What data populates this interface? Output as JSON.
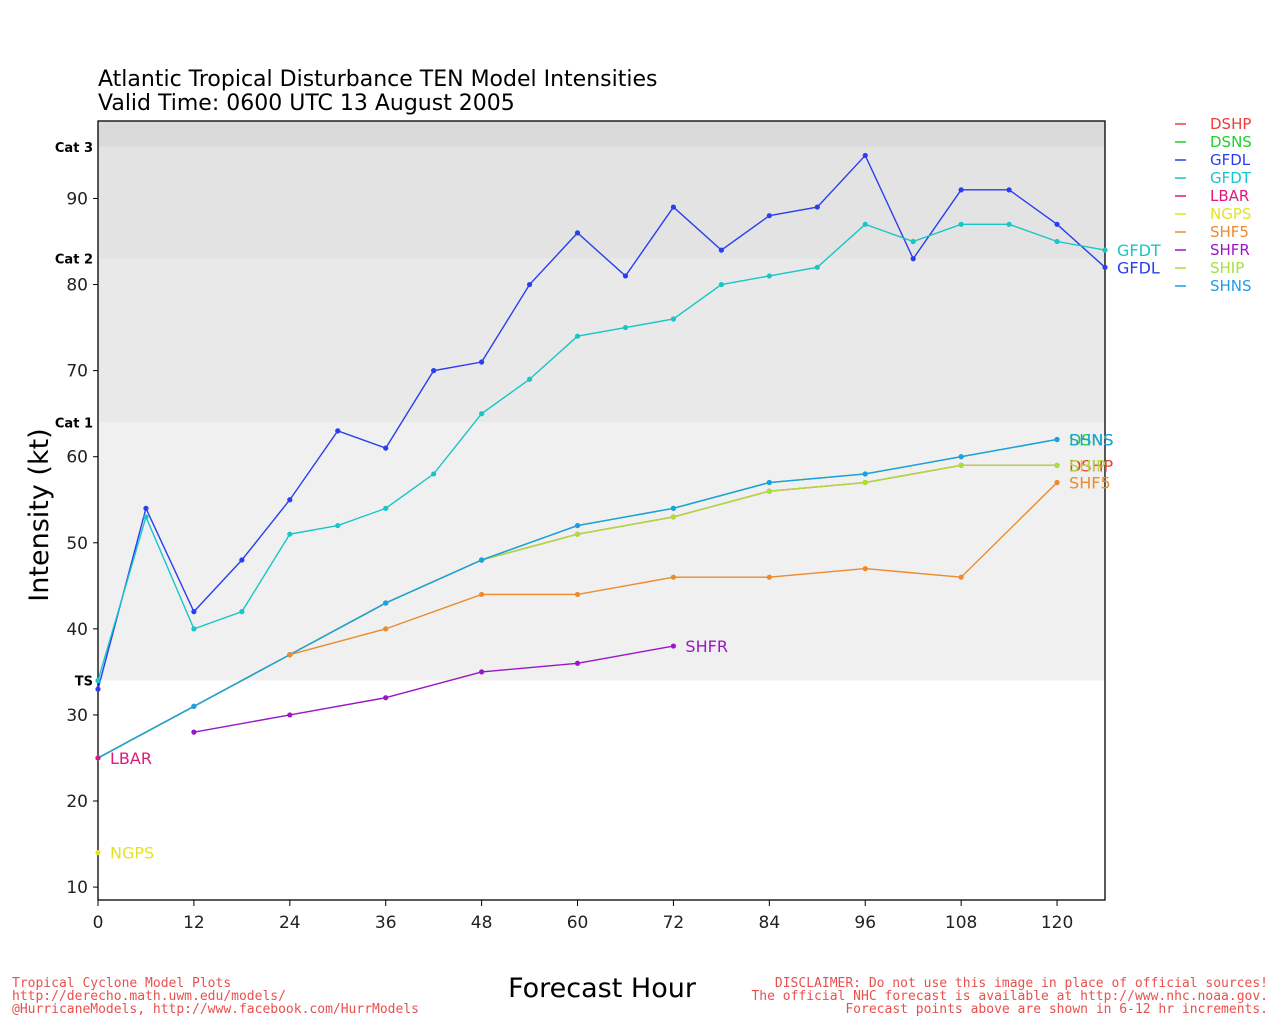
{
  "chart_data": {
    "type": "line",
    "title": "Atlantic Tropical Disturbance TEN Model Intensities",
    "subtitle": "Valid Time: 0600 UTC 13 August 2005",
    "xlabel": "Forecast Hour",
    "ylabel": "Intensity (kt)",
    "xlim": [
      0,
      126
    ],
    "ylim": [
      8.5,
      99
    ],
    "xticks": [
      0,
      12,
      24,
      36,
      48,
      60,
      72,
      84,
      96,
      108,
      120
    ],
    "xtick_labels": [
      "0",
      "12",
      "24",
      "36",
      "48",
      "60",
      "72",
      "84",
      "96",
      "108",
      "120"
    ],
    "yticks": [
      10,
      20,
      30,
      40,
      50,
      60,
      70,
      80,
      90
    ],
    "ytick_labels": [
      "10",
      "20",
      "30",
      "40",
      "50",
      "60",
      "70",
      "80",
      "90"
    ],
    "grid": false,
    "legend_position": "right-top",
    "bands": [
      {
        "label": "TS",
        "from": 34,
        "to": 64,
        "color": "#f0f0f0"
      },
      {
        "label": "Cat 1",
        "from": 64,
        "to": 83,
        "color": "#e9e9e9"
      },
      {
        "label": "Cat 2",
        "from": 83,
        "to": 96,
        "color": "#e3e3e3"
      },
      {
        "label": "Cat 3",
        "from": 96,
        "to": 99,
        "color": "#dadada"
      }
    ],
    "series": [
      {
        "name": "GFDL",
        "color": "#2a3df0",
        "x": [
          0,
          6,
          12,
          18,
          24,
          30,
          36,
          42,
          48,
          54,
          60,
          66,
          72,
          78,
          84,
          90,
          96,
          102,
          108,
          114,
          120,
          126
        ],
        "y": [
          33,
          54,
          42,
          48,
          55,
          63,
          61,
          70,
          71,
          80,
          86,
          81,
          89,
          84,
          88,
          89,
          95,
          83,
          91,
          91,
          87,
          82
        ],
        "end_label": "GFDL"
      },
      {
        "name": "GFDT",
        "color": "#17c6c6",
        "x": [
          0,
          6,
          12,
          18,
          24,
          30,
          36,
          42,
          48,
          54,
          60,
          66,
          72,
          78,
          84,
          90,
          96,
          102,
          108,
          114,
          120,
          126
        ],
        "y": [
          34,
          53,
          40,
          42,
          51,
          52,
          54,
          58,
          65,
          69,
          74,
          75,
          76,
          80,
          81,
          82,
          87,
          85,
          87,
          87,
          85,
          84
        ],
        "end_label": "GFDT"
      },
      {
        "name": "DSHP",
        "color": "#f03a3a",
        "x": [
          0,
          12,
          24,
          36,
          48,
          60,
          72,
          84,
          96,
          108,
          120
        ],
        "y": [
          25,
          31,
          37,
          43,
          48,
          51,
          53,
          56,
          57,
          59,
          59
        ],
        "end_label": "DSHP"
      },
      {
        "name": "SHIP",
        "color": "#a8e03a",
        "x": [
          0,
          12,
          24,
          36,
          48,
          60,
          72,
          84,
          96,
          108,
          120
        ],
        "y": [
          25,
          31,
          37,
          43,
          48,
          51,
          53,
          56,
          57,
          59,
          59
        ],
        "end_label": "SHIP"
      },
      {
        "name": "DSNS",
        "color": "#1fd02a",
        "x": [
          0,
          12,
          24,
          36,
          48,
          60,
          72,
          84,
          96,
          108,
          120
        ],
        "y": [
          25,
          31,
          37,
          43,
          48,
          52,
          54,
          57,
          58,
          60,
          62
        ],
        "end_label": "DSNS"
      },
      {
        "name": "SHNS",
        "color": "#1e9ee8",
        "x": [
          0,
          12,
          24,
          36,
          48,
          60,
          72,
          84,
          96,
          108,
          120
        ],
        "y": [
          25,
          31,
          37,
          43,
          48,
          52,
          54,
          57,
          58,
          60,
          62
        ],
        "end_label": "SHNS"
      },
      {
        "name": "SHF5",
        "color": "#ec8a2e",
        "x": [
          24,
          36,
          48,
          60,
          72,
          84,
          96,
          108,
          120
        ],
        "y": [
          37,
          40,
          44,
          44,
          46,
          46,
          47,
          46,
          57
        ],
        "end_label": "SHF5"
      },
      {
        "name": "SHFR",
        "color": "#9a16c8",
        "x": [
          12,
          24,
          36,
          48,
          60,
          72
        ],
        "y": [
          28,
          30,
          32,
          35,
          36,
          38
        ],
        "end_label": "SHFR"
      },
      {
        "name": "LBAR",
        "color": "#e0187c",
        "x": [
          0
        ],
        "y": [
          25
        ],
        "end_label": "LBAR"
      },
      {
        "name": "NGPS",
        "color": "#e2e22a",
        "x": [
          0
        ],
        "y": [
          14
        ],
        "end_label": "NGPS"
      }
    ],
    "legend": [
      {
        "name": "DSHP",
        "color": "#f03a3a"
      },
      {
        "name": "DSNS",
        "color": "#1fd02a"
      },
      {
        "name": "GFDL",
        "color": "#2a3df0"
      },
      {
        "name": "GFDT",
        "color": "#17c6c6"
      },
      {
        "name": "LBAR",
        "color": "#e0187c"
      },
      {
        "name": "NGPS",
        "color": "#e2e22a"
      },
      {
        "name": "SHF5",
        "color": "#ec8a2e"
      },
      {
        "name": "SHFR",
        "color": "#9a16c8"
      },
      {
        "name": "SHIP",
        "color": "#a8e03a"
      },
      {
        "name": "SHNS",
        "color": "#1e9ee8"
      }
    ]
  },
  "footer": {
    "left": [
      "Tropical Cyclone Model Plots",
      "http://derecho.math.uwm.edu/models/",
      "@HurricaneModels, http://www.facebook.com/HurrModels"
    ],
    "right": [
      "DISCLAIMER: Do not use this image in place of official sources!",
      "The official NHC forecast is available at http://www.nhc.noaa.gov.",
      "Forecast points above are shown in 6-12 hr increments."
    ]
  }
}
